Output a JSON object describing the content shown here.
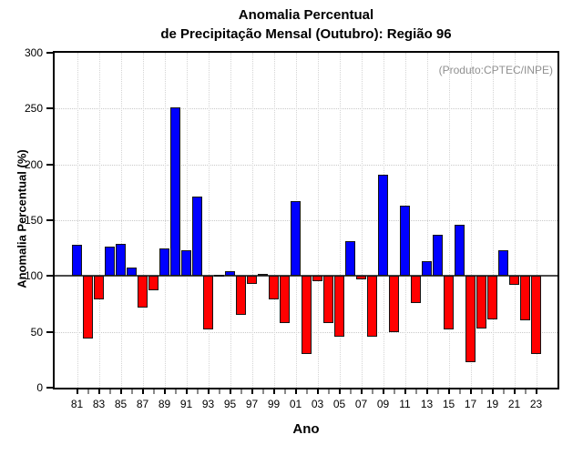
{
  "chart_data": {
    "type": "bar",
    "title": "Anomalia Percentual de Precipitação Mensal (Outubro): Região 96",
    "title_line1": "Anomalia Percentual",
    "title_line2": "de Precipitação Mensal (Outubro): Região 96",
    "annotation": "(Produto:CPTEC/INPE)",
    "xlabel": "Ano",
    "ylabel": "Anomalia Percentual (%)",
    "ylim": [
      0,
      300
    ],
    "yticks": [
      0,
      50,
      100,
      150,
      200,
      250,
      300
    ],
    "baseline": 100,
    "grid": "dotted",
    "legend": null,
    "x_tick_labels": [
      "81",
      "83",
      "85",
      "87",
      "89",
      "91",
      "93",
      "95",
      "97",
      "99",
      "01",
      "03",
      "05",
      "07",
      "09",
      "11",
      "13",
      "15",
      "17",
      "19",
      "21",
      "23"
    ],
    "years": [
      1981,
      1982,
      1983,
      1984,
      1985,
      1986,
      1987,
      1988,
      1989,
      1990,
      1991,
      1992,
      1993,
      1994,
      1995,
      1996,
      1997,
      1998,
      1999,
      2000,
      2001,
      2002,
      2003,
      2004,
      2005,
      2006,
      2007,
      2008,
      2009,
      2010,
      2011,
      2012,
      2013,
      2014,
      2015,
      2016,
      2017,
      2018,
      2019,
      2020,
      2021,
      2022,
      2023
    ],
    "values": [
      128,
      44,
      79,
      126,
      129,
      108,
      72,
      87,
      125,
      251,
      123,
      171,
      52,
      101,
      104,
      65,
      93,
      102,
      79,
      58,
      167,
      30,
      95,
      58,
      46,
      131,
      97,
      46,
      191,
      50,
      163,
      76,
      113,
      137,
      52,
      146,
      23,
      53,
      61,
      123,
      92,
      60,
      30
    ],
    "colors": {
      "above_baseline": "#0000ff",
      "below_baseline": "#ff0000",
      "baseline_line": "#4a4a4a",
      "annotation_text": "#909090"
    }
  }
}
